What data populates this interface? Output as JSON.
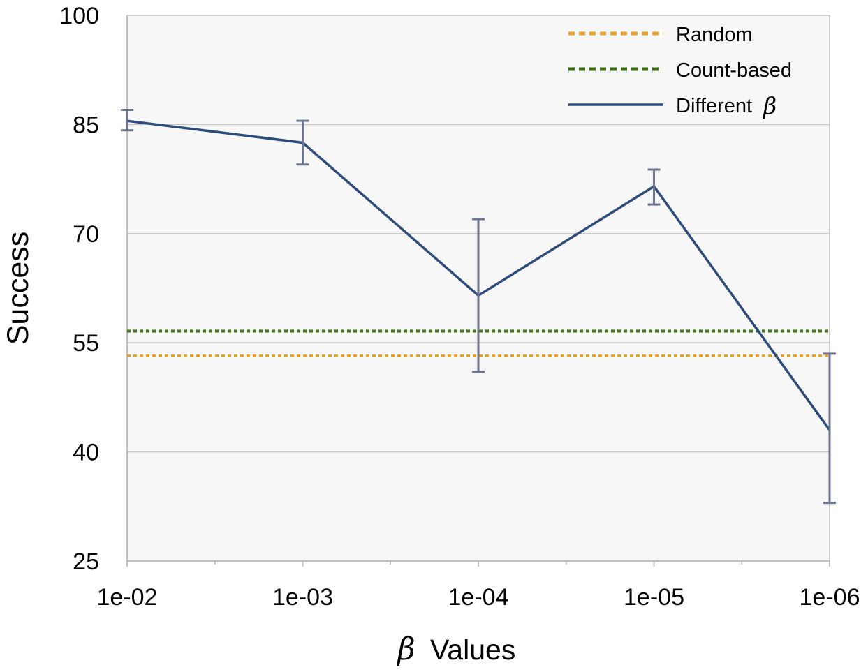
{
  "chart_data": {
    "type": "line",
    "categories": [
      "1e-02",
      "1e-03",
      "1e-04",
      "1e-05",
      "1e-06"
    ],
    "xlabel": {
      "symbol": "β",
      "text": "Values"
    },
    "ylabel": "Success",
    "ylim": [
      25,
      100
    ],
    "yticks": [
      "25",
      "40",
      "55",
      "70",
      "85",
      "100"
    ],
    "ytick_values": [
      25,
      40,
      55,
      70,
      85,
      100
    ],
    "grid": true,
    "legend_position": "top-right",
    "series": [
      {
        "name": "Different",
        "name_symbol": "β",
        "style": "solid",
        "color": "#2F4B7C",
        "values": [
          85.5,
          82.5,
          61.5,
          76.5,
          43.0
        ],
        "error_low": [
          84.2,
          79.5,
          51.0,
          74.0,
          33.0
        ],
        "error_high": [
          87.0,
          85.5,
          72.0,
          78.8,
          53.5
        ]
      }
    ],
    "reference_lines": [
      {
        "name": "Random",
        "style": "dotted",
        "color": "#E8A030",
        "value": 53.2
      },
      {
        "name": "Count-based",
        "style": "dotted",
        "color": "#3B6E12",
        "value": 56.6
      }
    ],
    "colors": {
      "plot_background": "#F7F7F7",
      "gridline": "#C6C6C6",
      "axis": "#BFBFBF",
      "error_bar": "#6C7592"
    }
  }
}
